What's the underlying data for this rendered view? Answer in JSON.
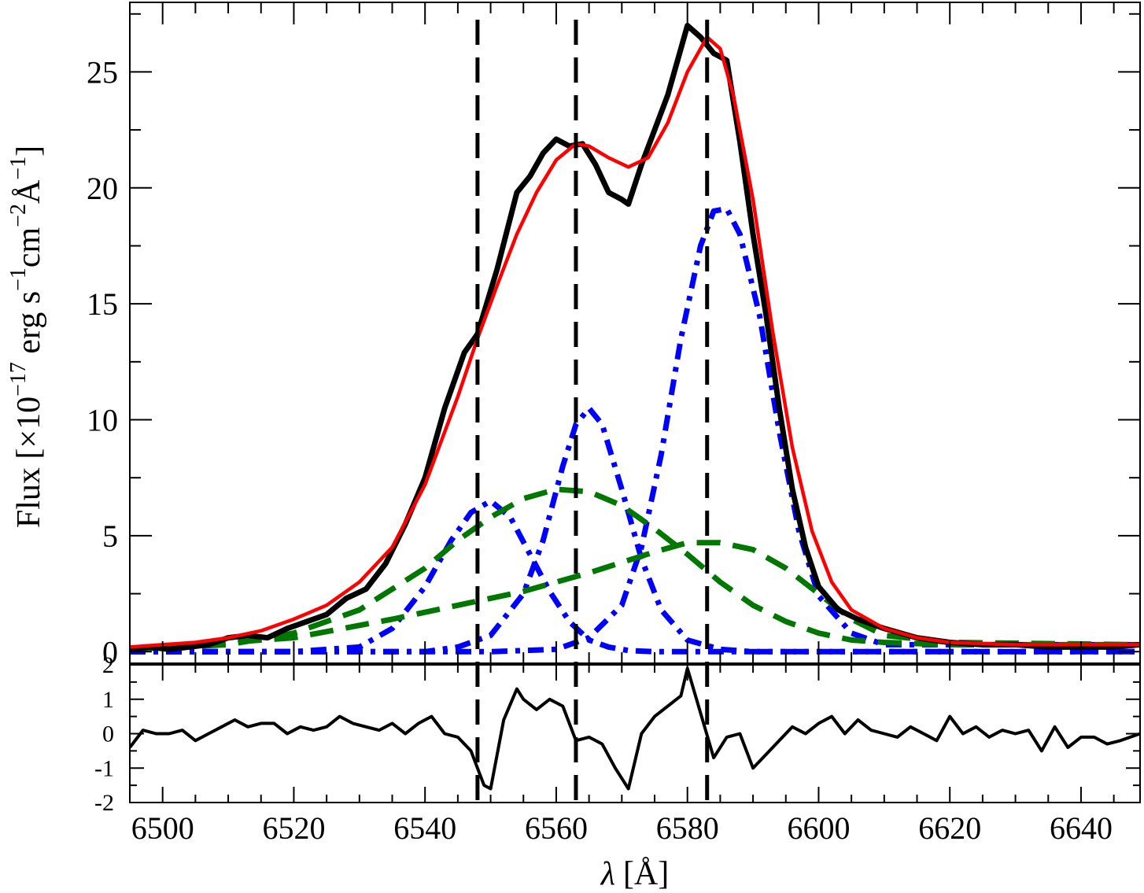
{
  "chart_data": [
    {
      "type": "line",
      "panel": "main",
      "xlabel_symbol": "λ",
      "xlabel_unit": "[Å]",
      "ylabel": "Flux [×10⁻¹⁷ erg s⁻¹cm⁻²Å⁻¹]",
      "ylabel_parts": {
        "prefix": "Flux [×10",
        "exp1": "−17",
        "mid1": " erg s",
        "exp2": "−1",
        "mid2": "cm",
        "exp3": "−2",
        "mid3": "Å",
        "exp4": "−1",
        "suffix": "]"
      },
      "xlim": [
        6495,
        6649
      ],
      "ylim": [
        -0.5,
        28
      ],
      "yticks": [
        0,
        5,
        10,
        15,
        20,
        25
      ],
      "ytick_labels": [
        "0",
        "5",
        "10",
        "15",
        "20",
        "25"
      ],
      "reference_lines_x": [
        6548,
        6563,
        6583
      ],
      "series": [
        {
          "role": "observed",
          "color": "#000000",
          "style": "solid-thick",
          "x": [
            6495,
            6498,
            6501,
            6504,
            6507,
            6510,
            6513,
            6516,
            6519,
            6522,
            6525,
            6528,
            6531,
            6534,
            6537,
            6540,
            6543,
            6546,
            6548,
            6551,
            6554,
            6556,
            6558,
            6560,
            6562,
            6564,
            6566,
            6568,
            6570,
            6571,
            6573,
            6575,
            6577,
            6579,
            6580,
            6582,
            6584,
            6586,
            6588,
            6590,
            6592,
            6594,
            6596,
            6598,
            6600,
            6603,
            6606,
            6610,
            6615,
            6620,
            6625,
            6630,
            6635,
            6640,
            6645,
            6649
          ],
          "y": [
            0.1,
            0.2,
            0.1,
            0.2,
            0.3,
            0.6,
            0.7,
            0.6,
            1.0,
            1.3,
            1.6,
            2.3,
            2.7,
            3.8,
            5.5,
            7.5,
            10.5,
            12.9,
            13.7,
            16.5,
            19.8,
            20.5,
            21.5,
            22.1,
            21.8,
            21.9,
            21.0,
            19.8,
            19.5,
            19.3,
            21.0,
            22.5,
            24.0,
            26.0,
            27.0,
            26.5,
            25.8,
            25.5,
            22.0,
            18.0,
            14.5,
            10.5,
            7.0,
            4.5,
            2.8,
            1.8,
            1.4,
            1.0,
            0.6,
            0.4,
            0.3,
            0.3,
            0.2,
            0.2,
            0.2,
            0.3
          ]
        },
        {
          "role": "total-fit",
          "color": "#ff0000",
          "style": "solid",
          "x": [
            6495,
            6500,
            6505,
            6510,
            6515,
            6520,
            6525,
            6530,
            6535,
            6540,
            6545,
            6548,
            6551,
            6554,
            6557,
            6560,
            6563,
            6565,
            6568,
            6571,
            6574,
            6577,
            6580,
            6583,
            6585,
            6587,
            6590,
            6593,
            6596,
            6599,
            6602,
            6605,
            6610,
            6615,
            6620,
            6630,
            6640,
            6649
          ],
          "y": [
            0.2,
            0.3,
            0.4,
            0.6,
            0.9,
            1.4,
            2.0,
            3.0,
            4.5,
            7.2,
            11.0,
            13.5,
            15.8,
            18.0,
            19.8,
            21.2,
            21.9,
            21.8,
            21.3,
            20.9,
            21.3,
            22.8,
            25.0,
            26.5,
            26.0,
            24.0,
            19.5,
            13.8,
            8.8,
            5.2,
            3.0,
            1.8,
            1.0,
            0.6,
            0.4,
            0.3,
            0.3,
            0.3
          ]
        },
        {
          "role": "narrow-component-6548",
          "color": "#0000ff",
          "style": "dash-dot",
          "x": [
            6495,
            6520,
            6530,
            6535,
            6540,
            6544,
            6547,
            6550,
            6553,
            6556,
            6559,
            6562,
            6565,
            6568,
            6571,
            6575,
            6580,
            6585,
            6590,
            6600,
            6649
          ],
          "y": [
            0,
            0,
            0.2,
            1.0,
            2.8,
            4.8,
            6.0,
            6.5,
            5.8,
            4.2,
            2.6,
            1.3,
            0.5,
            0.2,
            0.05,
            0,
            0,
            0,
            0,
            0,
            0
          ]
        },
        {
          "role": "narrow-component-6563",
          "color": "#0000ff",
          "style": "dash-dot",
          "x": [
            6495,
            6530,
            6540,
            6545,
            6550,
            6555,
            6558,
            6561,
            6563,
            6565,
            6567,
            6570,
            6573,
            6576,
            6580,
            6585,
            6590,
            6649
          ],
          "y": [
            0,
            0,
            0,
            0.2,
            0.7,
            2.5,
            4.8,
            8.0,
            9.8,
            10.5,
            9.8,
            7.0,
            4.0,
            1.8,
            0.5,
            0.1,
            0,
            0
          ]
        },
        {
          "role": "narrow-component-6583",
          "color": "#0000ff",
          "style": "dash-dot",
          "x": [
            6495,
            6550,
            6560,
            6565,
            6570,
            6573,
            6576,
            6579,
            6582,
            6584,
            6586,
            6588,
            6591,
            6594,
            6597,
            6600,
            6605,
            6610,
            6649
          ],
          "y": [
            0,
            0,
            0.1,
            0.6,
            2.0,
            4.5,
            8.5,
            13.5,
            17.5,
            19.0,
            19.1,
            18.0,
            14.5,
            9.5,
            5.2,
            2.4,
            0.8,
            0.3,
            0.3
          ]
        },
        {
          "role": "broad-component-1",
          "color": "#007700",
          "style": "dashed",
          "x": [
            6495,
            6510,
            6520,
            6530,
            6540,
            6545,
            6550,
            6555,
            6560,
            6565,
            6570,
            6575,
            6580,
            6585,
            6590,
            6595,
            6600,
            6605,
            6610,
            6620,
            6649
          ],
          "y": [
            0.1,
            0.3,
            0.8,
            1.8,
            3.6,
            4.8,
            5.8,
            6.6,
            7.0,
            6.9,
            6.3,
            5.3,
            4.2,
            3.0,
            2.0,
            1.3,
            0.8,
            0.5,
            0.4,
            0.3,
            0.3
          ]
        },
        {
          "role": "broad-component-2",
          "color": "#007700",
          "style": "dashed",
          "x": [
            6495,
            6520,
            6535,
            6545,
            6555,
            6565,
            6575,
            6580,
            6585,
            6590,
            6595,
            6600,
            6605,
            6610,
            6620,
            6649
          ],
          "y": [
            0.1,
            0.6,
            1.4,
            2.0,
            2.6,
            3.4,
            4.3,
            4.7,
            4.7,
            4.4,
            3.6,
            2.5,
            1.4,
            0.7,
            0.4,
            0.3
          ]
        }
      ]
    },
    {
      "type": "line",
      "panel": "residuals",
      "xlim": [
        6495,
        6649
      ],
      "ylim": [
        -2,
        2
      ],
      "yticks": [
        -2,
        -1,
        0,
        1,
        2
      ],
      "ytick_labels": [
        "-2",
        "-1",
        "0",
        "1",
        "2"
      ],
      "xticks": [
        6500,
        6520,
        6540,
        6560,
        6580,
        6600,
        6620,
        6640
      ],
      "xtick_labels": [
        "6500",
        "6520",
        "6540",
        "6560",
        "6580",
        "6600",
        "6620",
        "6640"
      ],
      "series": [
        {
          "role": "residual",
          "color": "#000000",
          "style": "solid",
          "x": [
            6495,
            6497,
            6499,
            6501,
            6503,
            6505,
            6507,
            6509,
            6511,
            6513,
            6515,
            6517,
            6519,
            6521,
            6523,
            6525,
            6527,
            6529,
            6531,
            6533,
            6535,
            6537,
            6539,
            6541,
            6543,
            6545,
            6547,
            6549,
            6550,
            6552,
            6554,
            6555,
            6557,
            6559,
            6561,
            6563,
            6565,
            6567,
            6569,
            6571,
            6573,
            6575,
            6577,
            6579,
            6580,
            6582,
            6584,
            6586,
            6588,
            6590,
            6592,
            6594,
            6596,
            6598,
            6600,
            6602,
            6604,
            6606,
            6608,
            6610,
            6612,
            6614,
            6616,
            6618,
            6620,
            6622,
            6624,
            6626,
            6628,
            6630,
            6632,
            6634,
            6636,
            6638,
            6640,
            6642,
            6644,
            6646,
            6649
          ],
          "y": [
            -0.4,
            0.1,
            0.0,
            0.0,
            0.1,
            -0.2,
            0.0,
            0.2,
            0.4,
            0.2,
            0.3,
            0.3,
            0.0,
            0.2,
            0.1,
            0.2,
            0.5,
            0.3,
            0.2,
            0.1,
            0.3,
            0.0,
            0.3,
            0.5,
            0.0,
            -0.1,
            -0.5,
            -1.5,
            -1.6,
            0.4,
            1.3,
            1.0,
            0.7,
            1.0,
            0.8,
            -0.2,
            -0.1,
            -0.3,
            -1.0,
            -1.6,
            0.0,
            0.5,
            0.8,
            1.1,
            1.9,
            0.6,
            -0.7,
            -0.1,
            0.0,
            -1.0,
            -0.6,
            -0.2,
            0.2,
            0.0,
            0.3,
            0.5,
            0.0,
            0.4,
            0.1,
            0.0,
            -0.1,
            0.2,
            0.0,
            -0.2,
            0.5,
            0.0,
            0.2,
            -0.1,
            0.1,
            0.0,
            0.1,
            -0.5,
            0.2,
            -0.4,
            -0.1,
            -0.1,
            -0.3,
            -0.2,
            0.0
          ]
        }
      ]
    }
  ]
}
